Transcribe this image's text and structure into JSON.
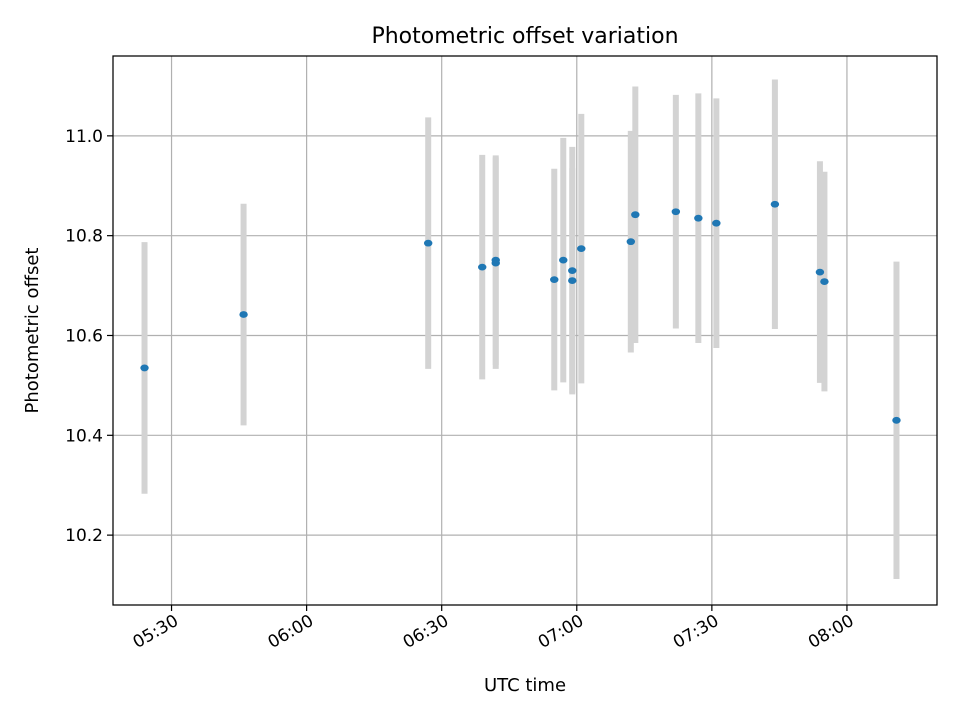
{
  "chart_data": {
    "type": "scatter",
    "title": "Photometric offset variation",
    "xlabel": "UTC time",
    "ylabel": "Photometric offset",
    "grid": true,
    "xlim": [
      "05:17",
      "08:20"
    ],
    "ylim": [
      10.06,
      11.16
    ],
    "xticks": [
      "05:30",
      "06:00",
      "06:30",
      "07:00",
      "07:30",
      "08:00"
    ],
    "yticks": [
      10.2,
      10.4,
      10.6,
      10.8,
      11.0
    ],
    "ytick_labels": [
      "10.2",
      "10.4",
      "10.6",
      "10.8",
      "11.0"
    ],
    "colors": {
      "marker": "#1f77b4",
      "errorbar": "#d3d3d3",
      "grid": "#b0b0b0"
    },
    "series": [
      {
        "x": [
          "05:24",
          "05:46",
          "06:27",
          "06:39",
          "06:42",
          "06:42",
          "06:55",
          "06:57",
          "06:59",
          "06:59",
          "07:01",
          "07:12",
          "07:13",
          "07:22",
          "07:27",
          "07:31",
          "07:44",
          "07:54",
          "07:55",
          "08:11"
        ],
        "y": [
          10.535,
          10.642,
          10.785,
          10.737,
          10.745,
          10.751,
          10.712,
          10.751,
          10.73,
          10.71,
          10.774,
          10.788,
          10.842,
          10.848,
          10.835,
          10.825,
          10.863,
          10.727,
          10.708,
          10.43
        ],
        "yerr": [
          0.252,
          0.222,
          0.252,
          0.225,
          0.212,
          0.21,
          0.222,
          0.245,
          0.248,
          0.225,
          0.27,
          0.222,
          0.257,
          0.234,
          0.25,
          0.25,
          0.25,
          0.222,
          0.22,
          0.318
        ]
      }
    ]
  }
}
